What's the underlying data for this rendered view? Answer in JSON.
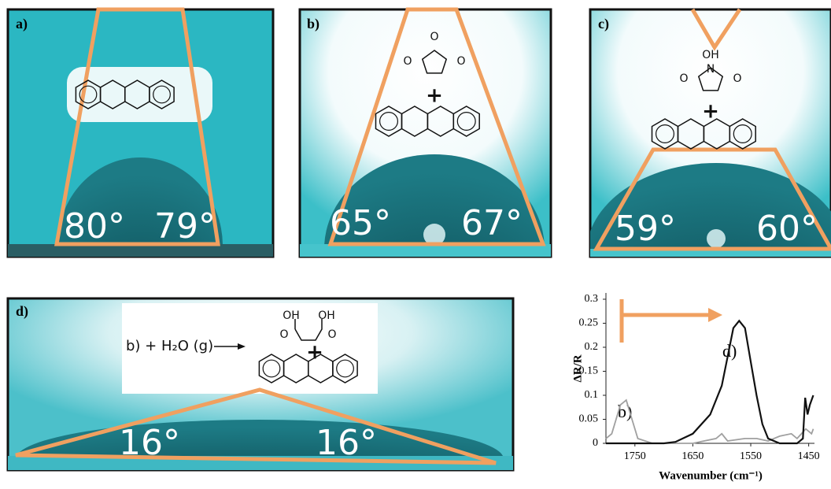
{
  "panels": [
    {
      "label": "a)",
      "angles": [
        "80°",
        "79°"
      ],
      "atoms": []
    },
    {
      "label": "b)",
      "angles": [
        "65°",
        "67°"
      ],
      "atoms": [
        "O",
        "O",
        "O",
        "+"
      ]
    },
    {
      "label": "c)",
      "angles": [
        "59°",
        "60°"
      ],
      "atoms": [
        "OH",
        "N",
        "O",
        "O",
        "+"
      ]
    },
    {
      "label": "d)",
      "angles": [
        "16°",
        "16°"
      ],
      "atoms": [
        "OH",
        "OH",
        "O",
        "O",
        "+"
      ],
      "note": "b) + H₂O (g)"
    }
  ],
  "chart_data": {
    "type": "line",
    "xlabel": "Wavenumber (cm⁻¹)",
    "ylabel": "ΔR/R",
    "xlim": [
      1800,
      1440
    ],
    "ylim": [
      0,
      0.3
    ],
    "xticks": [
      1750,
      1650,
      1550,
      1450
    ],
    "yticks": [
      0,
      0.05,
      0.1,
      0.15,
      0.2,
      0.25,
      0.3
    ],
    "annotations": [
      "d)",
      "b)"
    ],
    "series": [
      {
        "name": "d)",
        "color": "#111111",
        "x": [
          1800,
          1700,
          1680,
          1650,
          1620,
          1600,
          1590,
          1580,
          1570,
          1560,
          1550,
          1540,
          1530,
          1520,
          1500,
          1470,
          1460,
          1456,
          1452,
          1448,
          1442
        ],
        "values": [
          0,
          0,
          0.003,
          0.02,
          0.06,
          0.12,
          0.18,
          0.24,
          0.255,
          0.24,
          0.17,
          0.1,
          0.04,
          0.01,
          0,
          0,
          0.01,
          0.095,
          0.06,
          0.08,
          0.1
        ]
      },
      {
        "name": "b)",
        "color": "#a0a0a0",
        "x": [
          1800,
          1790,
          1775,
          1765,
          1755,
          1745,
          1720,
          1650,
          1610,
          1600,
          1590,
          1560,
          1540,
          1520,
          1500,
          1480,
          1470,
          1455,
          1445,
          1442
        ],
        "values": [
          0.01,
          0.02,
          0.08,
          0.09,
          0.05,
          0.01,
          0,
          0,
          0.01,
          0.02,
          0.005,
          0.01,
          0.01,
          0.005,
          0.015,
          0.02,
          0.01,
          0.03,
          0.02,
          0.03
        ]
      }
    ]
  }
}
